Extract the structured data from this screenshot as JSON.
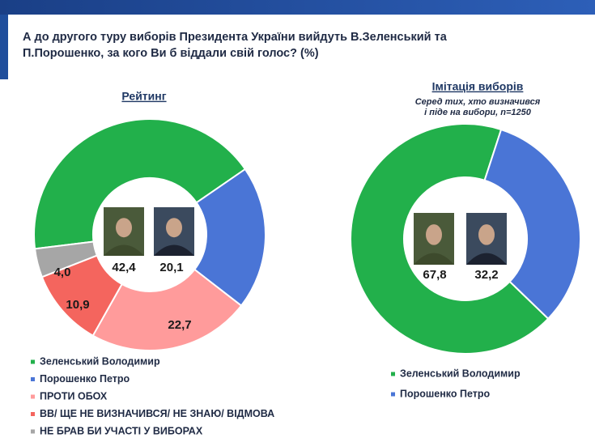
{
  "header": {
    "title": [
      "А до другого туру виборів Президента України вийдуть В.Зеленський та",
      "П.Порошенко, за кого Ви б віддали свій голос? (%)"
    ]
  },
  "chart_data": [
    {
      "type": "donut",
      "title": "Рейтинг",
      "categories": [
        "Зеленський Володимир",
        "Порошенко Петро",
        "ПРОТИ ОБОХ",
        "ВВ/ ЩЕ НЕ ВИЗНАЧИВСЯ/ НЕ ЗНАЮ/ ВІДМОВА",
        "НЕ БРАВ БИ УЧАСТІ У ВИБОРАХ"
      ],
      "values": [
        42.4,
        20.1,
        22.7,
        10.9,
        4.0
      ],
      "value_labels": [
        "42,4",
        "20,1",
        "22,7",
        "10,9",
        "4,0"
      ],
      "colors": [
        "#22b04b",
        "#4a75d6",
        "#ff9b9b",
        "#f4655e",
        "#a6a6a6"
      ]
    },
    {
      "type": "donut",
      "title": "Імітація виборів",
      "note": [
        "Серед тих, хто визначився",
        "і піде на вибори, n=1250"
      ],
      "categories": [
        "Зеленський Володимир",
        "Порошенко Петро"
      ],
      "values": [
        67.8,
        32.2
      ],
      "value_labels": [
        "67,8",
        "32,2"
      ],
      "colors": [
        "#22b04b",
        "#4a75d6"
      ]
    }
  ]
}
